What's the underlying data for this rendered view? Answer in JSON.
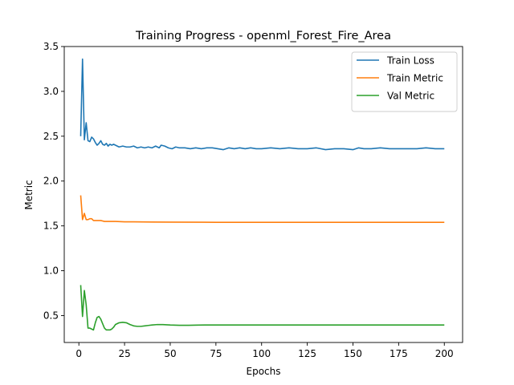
{
  "chart_data": {
    "type": "line",
    "title": "Training Progress - openml_Forest_Fire_Area",
    "xlabel": "Epochs",
    "ylabel": "Metric",
    "xlim": [
      -8,
      210
    ],
    "ylim": [
      0.2,
      3.5
    ],
    "xticks": [
      0,
      25,
      50,
      75,
      100,
      125,
      150,
      175,
      200
    ],
    "yticks": [
      0.5,
      1.0,
      1.5,
      2.0,
      2.5,
      3.0,
      3.5
    ],
    "ytick_labels": [
      "0.5",
      "1.0",
      "1.5",
      "2.0",
      "2.5",
      "3.0",
      "3.5"
    ],
    "grid": false,
    "legend_position": "top-right",
    "series": [
      {
        "name": "Train Loss",
        "color": "#1f77b4",
        "points": [
          [
            1,
            2.5
          ],
          [
            2,
            3.36
          ],
          [
            3,
            2.46
          ],
          [
            4,
            2.65
          ],
          [
            5,
            2.45
          ],
          [
            6,
            2.44
          ],
          [
            7,
            2.49
          ],
          [
            8,
            2.47
          ],
          [
            9,
            2.43
          ],
          [
            10,
            2.4
          ],
          [
            11,
            2.42
          ],
          [
            12,
            2.45
          ],
          [
            13,
            2.41
          ],
          [
            14,
            2.4
          ],
          [
            15,
            2.42
          ],
          [
            16,
            2.39
          ],
          [
            17,
            2.41
          ],
          [
            18,
            2.4
          ],
          [
            19,
            2.41
          ],
          [
            20,
            2.4
          ],
          [
            22,
            2.38
          ],
          [
            24,
            2.39
          ],
          [
            26,
            2.38
          ],
          [
            28,
            2.38
          ],
          [
            30,
            2.39
          ],
          [
            32,
            2.37
          ],
          [
            34,
            2.38
          ],
          [
            36,
            2.37
          ],
          [
            38,
            2.38
          ],
          [
            40,
            2.37
          ],
          [
            42,
            2.39
          ],
          [
            44,
            2.37
          ],
          [
            45,
            2.4
          ],
          [
            47,
            2.39
          ],
          [
            49,
            2.37
          ],
          [
            51,
            2.36
          ],
          [
            53,
            2.38
          ],
          [
            55,
            2.37
          ],
          [
            58,
            2.37
          ],
          [
            61,
            2.36
          ],
          [
            64,
            2.37
          ],
          [
            67,
            2.36
          ],
          [
            70,
            2.37
          ],
          [
            73,
            2.37
          ],
          [
            76,
            2.36
          ],
          [
            79,
            2.35
          ],
          [
            82,
            2.37
          ],
          [
            85,
            2.36
          ],
          [
            88,
            2.37
          ],
          [
            91,
            2.36
          ],
          [
            94,
            2.37
          ],
          [
            97,
            2.36
          ],
          [
            100,
            2.36
          ],
          [
            105,
            2.37
          ],
          [
            110,
            2.36
          ],
          [
            115,
            2.37
          ],
          [
            120,
            2.36
          ],
          [
            125,
            2.36
          ],
          [
            130,
            2.37
          ],
          [
            135,
            2.35
          ],
          [
            140,
            2.36
          ],
          [
            145,
            2.36
          ],
          [
            150,
            2.35
          ],
          [
            153,
            2.37
          ],
          [
            156,
            2.36
          ],
          [
            160,
            2.36
          ],
          [
            165,
            2.37
          ],
          [
            170,
            2.36
          ],
          [
            175,
            2.36
          ],
          [
            180,
            2.36
          ],
          [
            185,
            2.36
          ],
          [
            190,
            2.37
          ],
          [
            195,
            2.36
          ],
          [
            200,
            2.36
          ]
        ]
      },
      {
        "name": "Train Metric",
        "color": "#ff7f0e",
        "points": [
          [
            1,
            1.84
          ],
          [
            2,
            1.57
          ],
          [
            3,
            1.64
          ],
          [
            4,
            1.57
          ],
          [
            5,
            1.57
          ],
          [
            6,
            1.58
          ],
          [
            7,
            1.58
          ],
          [
            8,
            1.56
          ],
          [
            9,
            1.56
          ],
          [
            10,
            1.56
          ],
          [
            12,
            1.56
          ],
          [
            14,
            1.55
          ],
          [
            16,
            1.55
          ],
          [
            18,
            1.55
          ],
          [
            20,
            1.55
          ],
          [
            25,
            1.545
          ],
          [
            30,
            1.545
          ],
          [
            40,
            1.543
          ],
          [
            50,
            1.542
          ],
          [
            75,
            1.54
          ],
          [
            100,
            1.54
          ],
          [
            150,
            1.54
          ],
          [
            200,
            1.54
          ]
        ]
      },
      {
        "name": "Val Metric",
        "color": "#2ca02c",
        "points": [
          [
            1,
            0.84
          ],
          [
            2,
            0.49
          ],
          [
            3,
            0.78
          ],
          [
            4,
            0.62
          ],
          [
            5,
            0.36
          ],
          [
            6,
            0.36
          ],
          [
            7,
            0.35
          ],
          [
            8,
            0.34
          ],
          [
            9,
            0.42
          ],
          [
            10,
            0.48
          ],
          [
            11,
            0.49
          ],
          [
            12,
            0.46
          ],
          [
            13,
            0.41
          ],
          [
            14,
            0.36
          ],
          [
            15,
            0.34
          ],
          [
            16,
            0.34
          ],
          [
            17,
            0.34
          ],
          [
            18,
            0.35
          ],
          [
            19,
            0.37
          ],
          [
            20,
            0.4
          ],
          [
            22,
            0.42
          ],
          [
            24,
            0.425
          ],
          [
            26,
            0.42
          ],
          [
            28,
            0.4
          ],
          [
            30,
            0.385
          ],
          [
            32,
            0.38
          ],
          [
            34,
            0.38
          ],
          [
            36,
            0.385
          ],
          [
            38,
            0.39
          ],
          [
            40,
            0.395
          ],
          [
            43,
            0.4
          ],
          [
            46,
            0.4
          ],
          [
            50,
            0.395
          ],
          [
            55,
            0.392
          ],
          [
            60,
            0.392
          ],
          [
            65,
            0.394
          ],
          [
            70,
            0.395
          ],
          [
            80,
            0.395
          ],
          [
            100,
            0.395
          ],
          [
            150,
            0.395
          ],
          [
            200,
            0.395
          ]
        ]
      }
    ]
  }
}
